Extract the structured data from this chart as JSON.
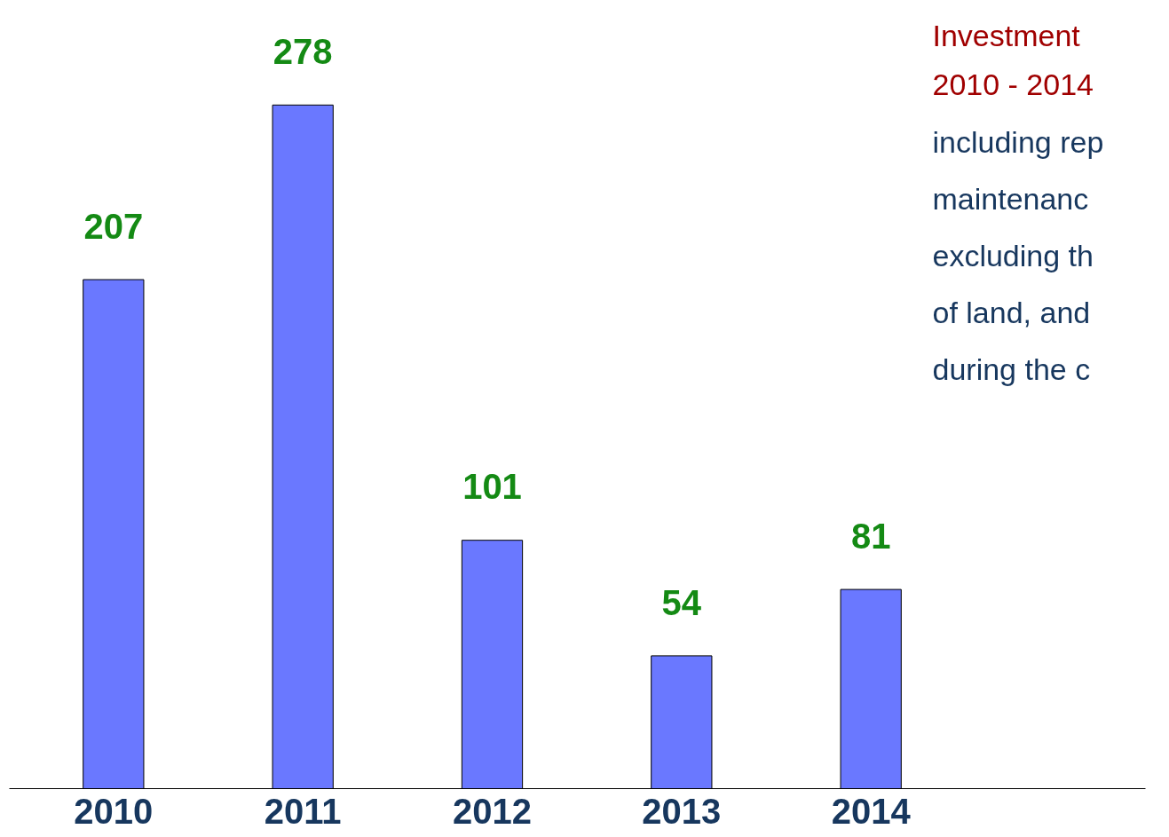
{
  "chart_data": {
    "type": "bar",
    "title": "Investment\n2010 - 2014",
    "annotations": [
      "including rep",
      "maintenanc",
      "excluding th",
      "of land, and",
      "during the c"
    ],
    "categories": [
      "2010",
      "2011",
      "2012",
      "2013",
      "2014"
    ],
    "values": [
      207,
      278,
      101,
      54,
      81
    ],
    "color": "#6a78ff",
    "data_labels": true
  }
}
